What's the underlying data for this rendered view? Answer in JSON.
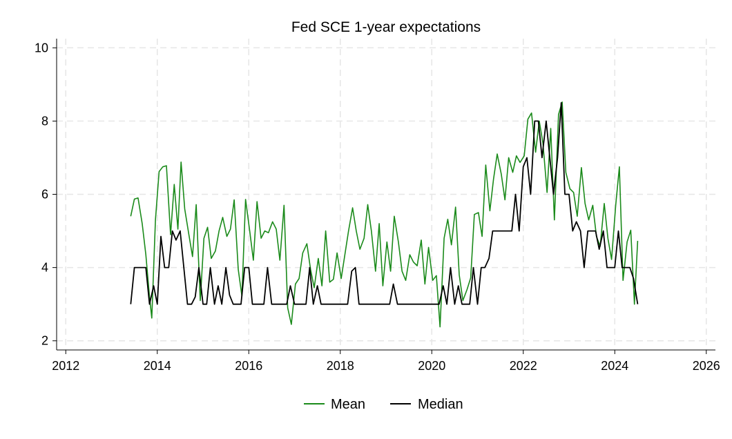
{
  "chart_data": {
    "type": "line",
    "title": "Fed SCE 1-year expectations",
    "xlabel": "",
    "ylabel": "",
    "xlim": [
      2011.8,
      2026.2
    ],
    "ylim": [
      1.75,
      10.25
    ],
    "xticks": [
      2012,
      2014,
      2016,
      2018,
      2020,
      2022,
      2024,
      2026
    ],
    "yticks": [
      2,
      4,
      6,
      8,
      10
    ],
    "grid": true,
    "legend_position": "bottom",
    "series": [
      {
        "name": "Mean",
        "color": "#1a8a1a",
        "points": [
          [
            2013.42,
            5.4
          ],
          [
            2013.5,
            5.87
          ],
          [
            2013.58,
            5.9
          ],
          [
            2013.67,
            5.2
          ],
          [
            2013.75,
            4.35
          ],
          [
            2013.83,
            3.2
          ],
          [
            2013.88,
            2.62
          ],
          [
            2013.96,
            5.3
          ],
          [
            2014.04,
            6.62
          ],
          [
            2014.12,
            6.75
          ],
          [
            2014.2,
            6.78
          ],
          [
            2014.29,
            4.9
          ],
          [
            2014.37,
            6.27
          ],
          [
            2014.45,
            5.05
          ],
          [
            2014.52,
            6.88
          ],
          [
            2014.6,
            5.6
          ],
          [
            2014.69,
            4.9
          ],
          [
            2014.77,
            4.3
          ],
          [
            2014.85,
            5.72
          ],
          [
            2014.94,
            3.1
          ],
          [
            2015.02,
            4.8
          ],
          [
            2015.1,
            5.1
          ],
          [
            2015.18,
            4.25
          ],
          [
            2015.27,
            4.45
          ],
          [
            2015.35,
            5.0
          ],
          [
            2015.43,
            5.37
          ],
          [
            2015.52,
            4.85
          ],
          [
            2015.6,
            5.05
          ],
          [
            2015.68,
            5.85
          ],
          [
            2015.77,
            3.95
          ],
          [
            2015.85,
            3.22
          ],
          [
            2015.93,
            5.86
          ],
          [
            2016.02,
            5.0
          ],
          [
            2016.1,
            4.2
          ],
          [
            2016.18,
            5.8
          ],
          [
            2016.27,
            4.8
          ],
          [
            2016.35,
            5.0
          ],
          [
            2016.43,
            4.95
          ],
          [
            2016.52,
            5.25
          ],
          [
            2016.6,
            5.05
          ],
          [
            2016.68,
            4.2
          ],
          [
            2016.77,
            5.7
          ],
          [
            2016.85,
            2.9
          ],
          [
            2016.93,
            2.45
          ],
          [
            2017.02,
            3.55
          ],
          [
            2017.1,
            3.7
          ],
          [
            2017.18,
            4.4
          ],
          [
            2017.27,
            4.65
          ],
          [
            2017.35,
            3.95
          ],
          [
            2017.43,
            3.45
          ],
          [
            2017.52,
            4.25
          ],
          [
            2017.6,
            3.5
          ],
          [
            2017.68,
            5.0
          ],
          [
            2017.77,
            3.6
          ],
          [
            2017.85,
            3.68
          ],
          [
            2017.93,
            4.4
          ],
          [
            2018.02,
            3.7
          ],
          [
            2018.1,
            4.35
          ],
          [
            2018.18,
            5.0
          ],
          [
            2018.27,
            5.63
          ],
          [
            2018.35,
            5.0
          ],
          [
            2018.43,
            4.5
          ],
          [
            2018.52,
            4.8
          ],
          [
            2018.6,
            5.72
          ],
          [
            2018.68,
            5.0
          ],
          [
            2018.77,
            3.9
          ],
          [
            2018.85,
            5.2
          ],
          [
            2018.93,
            3.5
          ],
          [
            2019.02,
            4.7
          ],
          [
            2019.1,
            3.9
          ],
          [
            2019.18,
            5.4
          ],
          [
            2019.27,
            4.7
          ],
          [
            2019.35,
            3.9
          ],
          [
            2019.43,
            3.65
          ],
          [
            2019.52,
            4.35
          ],
          [
            2019.6,
            4.15
          ],
          [
            2019.68,
            4.05
          ],
          [
            2019.77,
            4.75
          ],
          [
            2019.85,
            3.55
          ],
          [
            2019.93,
            4.55
          ],
          [
            2020.02,
            3.65
          ],
          [
            2020.1,
            3.78
          ],
          [
            2020.18,
            2.38
          ],
          [
            2020.27,
            4.8
          ],
          [
            2020.35,
            5.32
          ],
          [
            2020.43,
            4.62
          ],
          [
            2020.52,
            5.65
          ],
          [
            2020.6,
            3.8
          ],
          [
            2020.68,
            3.1
          ],
          [
            2020.77,
            3.4
          ],
          [
            2020.85,
            3.72
          ],
          [
            2020.93,
            5.45
          ],
          [
            2021.02,
            5.5
          ],
          [
            2021.1,
            4.85
          ],
          [
            2021.18,
            6.8
          ],
          [
            2021.27,
            5.55
          ],
          [
            2021.35,
            6.42
          ],
          [
            2021.43,
            7.1
          ],
          [
            2021.52,
            6.55
          ],
          [
            2021.6,
            5.85
          ],
          [
            2021.68,
            7.0
          ],
          [
            2021.77,
            6.6
          ],
          [
            2021.85,
            7.05
          ],
          [
            2021.93,
            6.87
          ],
          [
            2022.02,
            7.05
          ],
          [
            2022.1,
            8.05
          ],
          [
            2022.18,
            8.22
          ],
          [
            2022.27,
            7.15
          ],
          [
            2022.35,
            8.0
          ],
          [
            2022.43,
            7.4
          ],
          [
            2022.52,
            6.05
          ],
          [
            2022.6,
            7.8
          ],
          [
            2022.68,
            5.3
          ],
          [
            2022.77,
            8.18
          ],
          [
            2022.85,
            8.52
          ],
          [
            2022.93,
            6.6
          ],
          [
            2023.02,
            6.15
          ],
          [
            2023.1,
            6.05
          ],
          [
            2023.18,
            5.4
          ],
          [
            2023.27,
            6.73
          ],
          [
            2023.35,
            5.75
          ],
          [
            2023.43,
            5.3
          ],
          [
            2023.52,
            5.7
          ],
          [
            2023.6,
            4.85
          ],
          [
            2023.68,
            4.58
          ],
          [
            2023.77,
            5.75
          ],
          [
            2023.85,
            4.8
          ],
          [
            2023.93,
            4.22
          ],
          [
            2024.02,
            5.7
          ],
          [
            2024.1,
            6.75
          ],
          [
            2024.18,
            3.65
          ],
          [
            2024.27,
            4.7
          ],
          [
            2024.35,
            5.02
          ],
          [
            2024.43,
            3.0
          ],
          [
            2024.5,
            4.73
          ]
        ]
      },
      {
        "name": "Median",
        "color": "#000000",
        "points": [
          [
            2013.42,
            3.0
          ],
          [
            2013.5,
            4.0
          ],
          [
            2013.58,
            4.0
          ],
          [
            2013.67,
            4.0
          ],
          [
            2013.75,
            4.0
          ],
          [
            2013.83,
            3.0
          ],
          [
            2013.92,
            3.5
          ],
          [
            2014.0,
            3.0
          ],
          [
            2014.08,
            4.85
          ],
          [
            2014.16,
            4.0
          ],
          [
            2014.25,
            4.0
          ],
          [
            2014.33,
            5.0
          ],
          [
            2014.41,
            4.75
          ],
          [
            2014.5,
            5.0
          ],
          [
            2014.58,
            4.0
          ],
          [
            2014.66,
            3.0
          ],
          [
            2014.75,
            3.0
          ],
          [
            2014.83,
            3.2
          ],
          [
            2014.91,
            4.0
          ],
          [
            2015.0,
            3.0
          ],
          [
            2015.08,
            3.0
          ],
          [
            2015.16,
            4.0
          ],
          [
            2015.25,
            3.0
          ],
          [
            2015.33,
            3.5
          ],
          [
            2015.41,
            3.0
          ],
          [
            2015.5,
            4.0
          ],
          [
            2015.58,
            3.25
          ],
          [
            2015.66,
            3.0
          ],
          [
            2015.75,
            3.0
          ],
          [
            2015.83,
            3.0
          ],
          [
            2015.91,
            4.0
          ],
          [
            2016.0,
            4.0
          ],
          [
            2016.08,
            3.0
          ],
          [
            2016.16,
            3.0
          ],
          [
            2016.25,
            3.0
          ],
          [
            2016.33,
            3.0
          ],
          [
            2016.41,
            4.0
          ],
          [
            2016.5,
            3.0
          ],
          [
            2016.58,
            3.0
          ],
          [
            2016.66,
            3.0
          ],
          [
            2016.75,
            3.0
          ],
          [
            2016.83,
            3.0
          ],
          [
            2016.91,
            3.5
          ],
          [
            2017.0,
            3.0
          ],
          [
            2017.08,
            3.0
          ],
          [
            2017.16,
            3.0
          ],
          [
            2017.25,
            3.0
          ],
          [
            2017.33,
            4.0
          ],
          [
            2017.41,
            3.0
          ],
          [
            2017.5,
            3.5
          ],
          [
            2017.58,
            3.0
          ],
          [
            2017.66,
            3.0
          ],
          [
            2017.75,
            3.0
          ],
          [
            2017.83,
            3.0
          ],
          [
            2017.91,
            3.0
          ],
          [
            2018.0,
            3.0
          ],
          [
            2018.08,
            3.0
          ],
          [
            2018.16,
            3.0
          ],
          [
            2018.25,
            3.9
          ],
          [
            2018.33,
            4.0
          ],
          [
            2018.41,
            3.0
          ],
          [
            2018.5,
            3.0
          ],
          [
            2018.58,
            3.0
          ],
          [
            2018.66,
            3.0
          ],
          [
            2018.75,
            3.0
          ],
          [
            2018.83,
            3.0
          ],
          [
            2018.91,
            3.0
          ],
          [
            2019.0,
            3.0
          ],
          [
            2019.08,
            3.0
          ],
          [
            2019.16,
            3.55
          ],
          [
            2019.25,
            3.0
          ],
          [
            2019.33,
            3.0
          ],
          [
            2019.41,
            3.0
          ],
          [
            2019.5,
            3.0
          ],
          [
            2019.58,
            3.0
          ],
          [
            2019.66,
            3.0
          ],
          [
            2019.75,
            3.0
          ],
          [
            2019.83,
            3.0
          ],
          [
            2019.91,
            3.0
          ],
          [
            2020.0,
            3.0
          ],
          [
            2020.08,
            3.0
          ],
          [
            2020.16,
            3.0
          ],
          [
            2020.25,
            3.5
          ],
          [
            2020.33,
            3.0
          ],
          [
            2020.41,
            4.0
          ],
          [
            2020.5,
            3.0
          ],
          [
            2020.58,
            3.5
          ],
          [
            2020.66,
            3.0
          ],
          [
            2020.75,
            3.0
          ],
          [
            2020.83,
            3.0
          ],
          [
            2020.91,
            4.0
          ],
          [
            2021.0,
            3.0
          ],
          [
            2021.08,
            4.0
          ],
          [
            2021.16,
            4.0
          ],
          [
            2021.25,
            4.25
          ],
          [
            2021.33,
            5.0
          ],
          [
            2021.41,
            5.0
          ],
          [
            2021.5,
            5.0
          ],
          [
            2021.58,
            5.0
          ],
          [
            2021.66,
            5.0
          ],
          [
            2021.75,
            5.0
          ],
          [
            2021.83,
            6.0
          ],
          [
            2021.91,
            5.0
          ],
          [
            2022.0,
            6.75
          ],
          [
            2022.08,
            7.0
          ],
          [
            2022.16,
            6.0
          ],
          [
            2022.25,
            8.0
          ],
          [
            2022.33,
            8.0
          ],
          [
            2022.41,
            7.0
          ],
          [
            2022.5,
            8.0
          ],
          [
            2022.58,
            7.0
          ],
          [
            2022.66,
            6.0
          ],
          [
            2022.75,
            7.0
          ],
          [
            2022.83,
            8.5
          ],
          [
            2022.91,
            6.0
          ],
          [
            2023.0,
            6.0
          ],
          [
            2023.08,
            5.0
          ],
          [
            2023.16,
            5.25
          ],
          [
            2023.25,
            5.0
          ],
          [
            2023.33,
            4.0
          ],
          [
            2023.41,
            5.0
          ],
          [
            2023.5,
            5.0
          ],
          [
            2023.58,
            5.0
          ],
          [
            2023.66,
            4.5
          ],
          [
            2023.75,
            5.0
          ],
          [
            2023.83,
            4.0
          ],
          [
            2023.91,
            4.0
          ],
          [
            2024.0,
            4.0
          ],
          [
            2024.08,
            5.0
          ],
          [
            2024.16,
            4.0
          ],
          [
            2024.25,
            4.0
          ],
          [
            2024.33,
            4.0
          ],
          [
            2024.41,
            3.7
          ],
          [
            2024.5,
            3.0
          ]
        ]
      }
    ]
  }
}
